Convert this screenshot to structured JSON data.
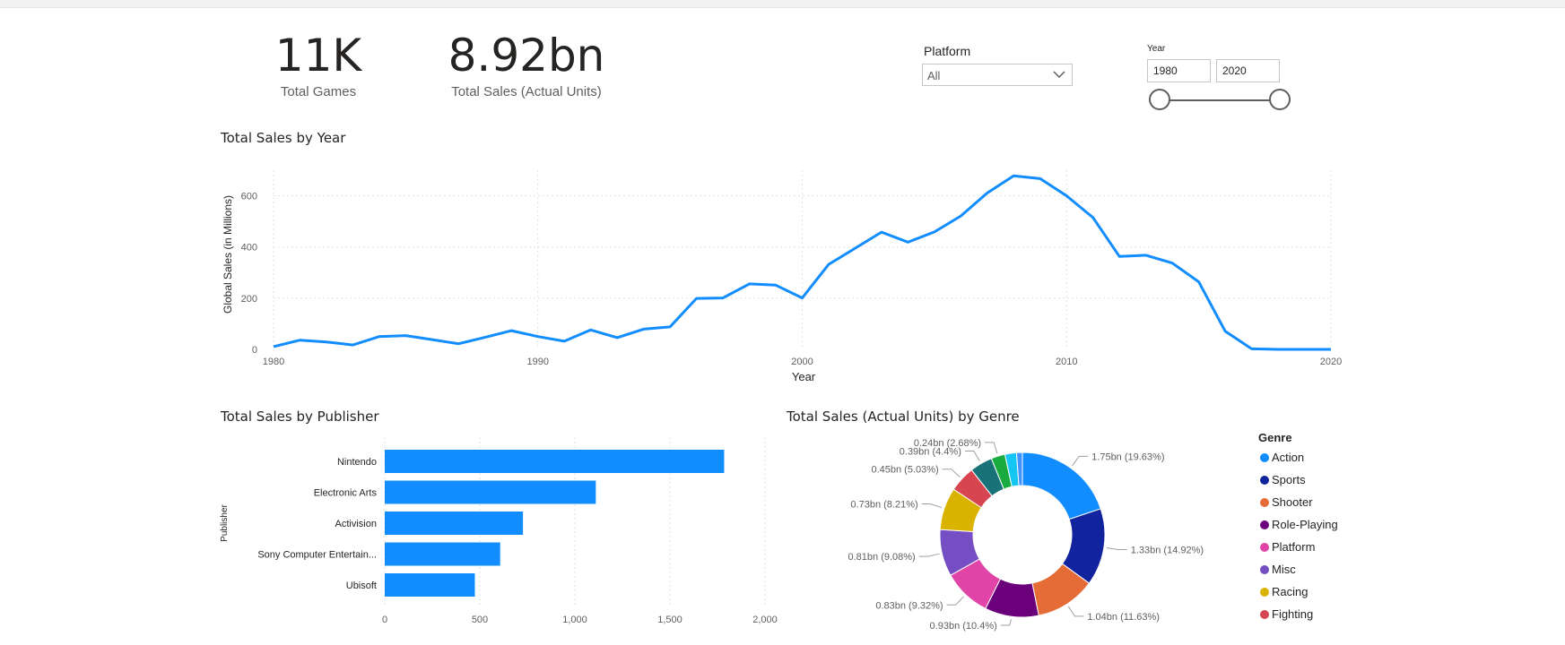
{
  "kpis": {
    "total_games": {
      "value": "11K",
      "label": "Total Games"
    },
    "total_sales": {
      "value": "8.92bn",
      "label": "Total Sales (Actual Units)"
    }
  },
  "slicers": {
    "platform": {
      "title": "Platform",
      "selected": "All"
    },
    "year": {
      "title": "Year",
      "from": "1980",
      "to": "2020"
    }
  },
  "chart_data": [
    {
      "type": "line",
      "title": "Total Sales by Year",
      "xlabel": "Year",
      "ylabel": "Global Sales (in Millions)",
      "xlim": [
        1980,
        2020
      ],
      "ylim": [
        0,
        700
      ],
      "x_ticks": [
        1980,
        1990,
        2000,
        2010,
        2020
      ],
      "y_ticks": [
        0,
        200,
        400,
        600
      ],
      "grid": true,
      "color": "#118DFF",
      "x": [
        1980,
        1981,
        1982,
        1983,
        1984,
        1985,
        1986,
        1987,
        1988,
        1989,
        1990,
        1991,
        1992,
        1993,
        1994,
        1995,
        1996,
        1997,
        1998,
        1999,
        2000,
        2001,
        2002,
        2003,
        2004,
        2005,
        2006,
        2007,
        2008,
        2009,
        2010,
        2011,
        2012,
        2013,
        2014,
        2015,
        2016,
        2017,
        2018,
        2019,
        2020
      ],
      "y": [
        11,
        36,
        29,
        17,
        50,
        54,
        38,
        22,
        47,
        73,
        50,
        32,
        76,
        46,
        79,
        88,
        199,
        201,
        256,
        251,
        201,
        332,
        395,
        458,
        419,
        459,
        521,
        611,
        678,
        667,
        600,
        515,
        363,
        368,
        337,
        264,
        71,
        2,
        0,
        0,
        0
      ]
    },
    {
      "type": "bar",
      "title": "Total Sales by Publisher",
      "ylabel": "Publisher",
      "categories": [
        "Nintendo",
        "Electronic Arts",
        "Activision",
        "Sony Computer Entertain...",
        "Ubisoft"
      ],
      "values": [
        1785,
        1110,
        727,
        607,
        474
      ],
      "xlim": [
        0,
        2000
      ],
      "x_ticks": [
        "0",
        "500",
        "1,000",
        "1,500",
        "2,000"
      ],
      "grid": true,
      "color": "#118DFF"
    },
    {
      "type": "pie",
      "title": "Total Sales (Actual Units) by Genre",
      "legend_title": "Genre",
      "legend_position": "right",
      "slices": [
        {
          "name": "Action",
          "value": 1.75,
          "label": "1.75bn (19.63%)",
          "color": "#118DFF"
        },
        {
          "name": "Sports",
          "value": 1.33,
          "label": "1.33bn (14.92%)",
          "color": "#12239E"
        },
        {
          "name": "Shooter",
          "value": 1.04,
          "label": "1.04bn (11.63%)",
          "color": "#E66C37"
        },
        {
          "name": "Role-Playing",
          "value": 0.93,
          "label": "0.93bn (10.4%)",
          "color": "#6B007B"
        },
        {
          "name": "Platform",
          "value": 0.83,
          "label": "0.83bn (9.32%)",
          "color": "#E044A7"
        },
        {
          "name": "Misc",
          "value": 0.81,
          "label": "0.81bn (9.08%)",
          "color": "#744EC2"
        },
        {
          "name": "Racing",
          "value": 0.73,
          "label": "0.73bn (8.21%)",
          "color": "#D9B300"
        },
        {
          "name": "Fighting",
          "value": 0.45,
          "label": "0.45bn (5.03%)",
          "color": "#D64550"
        },
        {
          "name": "",
          "value": 0.39,
          "label": "0.39bn (4.4%)",
          "color": "#197278"
        },
        {
          "name": "",
          "value": 0.24,
          "label": "0.24bn (2.68%)",
          "color": "#1AAB40"
        },
        {
          "name": "",
          "value": 0.2,
          "label": "",
          "color": "#15C6F4"
        },
        {
          "name": "",
          "value": 0.1,
          "label": "",
          "color": "#4092FF"
        }
      ]
    }
  ]
}
